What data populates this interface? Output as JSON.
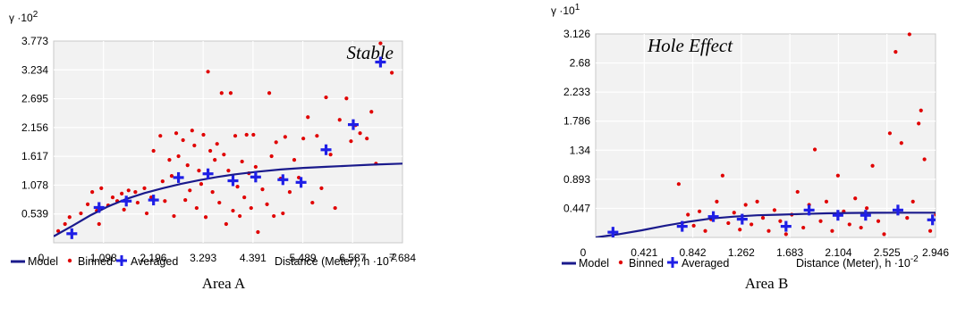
{
  "colors": {
    "model": "#1a1a8c",
    "binned": "#e00000",
    "averaged": "#1f1fe6",
    "plot_bg": "#f2f2f2",
    "grid": "#ffffff"
  },
  "chart_data": [
    {
      "type": "scatter",
      "title": "Stable",
      "caption": "Area A",
      "ylabel": "γ ·10",
      "ylabel_exp": "2",
      "xlabel": "Distance (Meter), h ·10",
      "xlabel_exp": "-2",
      "legend": {
        "model": "Model",
        "binned": "Binned",
        "averaged": "Averaged",
        "placement": "bottom"
      },
      "xlim": [
        0,
        7.684
      ],
      "ylim": [
        0,
        3.773
      ],
      "xticks": [
        "0",
        "1.098",
        "2.196",
        "3.293",
        "4.391",
        "5.489",
        "6.587",
        "7.684"
      ],
      "yticks": [
        "0.539",
        "1.078",
        "1.617",
        "2.156",
        "2.695",
        "3.234",
        "3.773"
      ],
      "grid": true,
      "model": [
        [
          0,
          0.12
        ],
        [
          0.4,
          0.31
        ],
        [
          0.8,
          0.51
        ],
        [
          1.2,
          0.68
        ],
        [
          1.6,
          0.82
        ],
        [
          2.0,
          0.93
        ],
        [
          2.4,
          1.02
        ],
        [
          2.8,
          1.1
        ],
        [
          3.2,
          1.17
        ],
        [
          3.6,
          1.23
        ],
        [
          4.0,
          1.28
        ],
        [
          4.5,
          1.33
        ],
        [
          5.0,
          1.37
        ],
        [
          5.5,
          1.4
        ],
        [
          6.0,
          1.42
        ],
        [
          6.5,
          1.44
        ],
        [
          7.0,
          1.46
        ],
        [
          7.684,
          1.48
        ]
      ],
      "averaged": [
        [
          0.4,
          0.17
        ],
        [
          1.0,
          0.66
        ],
        [
          1.6,
          0.78
        ],
        [
          2.2,
          0.8
        ],
        [
          2.75,
          1.22
        ],
        [
          3.4,
          1.29
        ],
        [
          3.95,
          1.16
        ],
        [
          4.45,
          1.23
        ],
        [
          5.05,
          1.18
        ],
        [
          5.45,
          1.13
        ],
        [
          6.0,
          1.74
        ],
        [
          6.6,
          2.21
        ],
        [
          7.2,
          3.38
        ]
      ],
      "binned": [
        [
          0.1,
          0.22
        ],
        [
          0.25,
          0.35
        ],
        [
          0.35,
          0.48
        ],
        [
          0.6,
          0.55
        ],
        [
          0.75,
          0.72
        ],
        [
          0.85,
          0.95
        ],
        [
          0.95,
          0.6
        ],
        [
          1.0,
          0.35
        ],
        [
          1.05,
          1.02
        ],
        [
          1.2,
          0.7
        ],
        [
          1.3,
          0.85
        ],
        [
          1.4,
          0.78
        ],
        [
          1.5,
          0.92
        ],
        [
          1.55,
          0.62
        ],
        [
          1.65,
          0.98
        ],
        [
          1.8,
          0.95
        ],
        [
          1.85,
          0.75
        ],
        [
          2.0,
          1.02
        ],
        [
          2.05,
          0.55
        ],
        [
          2.15,
          0.85
        ],
        [
          2.2,
          1.72
        ],
        [
          2.35,
          2.0
        ],
        [
          2.4,
          1.15
        ],
        [
          2.45,
          0.78
        ],
        [
          2.55,
          1.55
        ],
        [
          2.6,
          1.25
        ],
        [
          2.65,
          0.5
        ],
        [
          2.7,
          2.05
        ],
        [
          2.75,
          1.62
        ],
        [
          2.85,
          1.92
        ],
        [
          2.9,
          0.8
        ],
        [
          2.95,
          1.45
        ],
        [
          3.0,
          0.98
        ],
        [
          3.05,
          2.1
        ],
        [
          3.1,
          1.82
        ],
        [
          3.15,
          0.65
        ],
        [
          3.2,
          1.35
        ],
        [
          3.25,
          1.1
        ],
        [
          3.3,
          2.02
        ],
        [
          3.35,
          0.48
        ],
        [
          3.4,
          3.2
        ],
        [
          3.45,
          1.72
        ],
        [
          3.5,
          0.95
        ],
        [
          3.55,
          1.55
        ],
        [
          3.6,
          1.85
        ],
        [
          3.65,
          0.75
        ],
        [
          3.7,
          2.8
        ],
        [
          3.75,
          1.65
        ],
        [
          3.8,
          0.35
        ],
        [
          3.85,
          1.35
        ],
        [
          3.9,
          2.8
        ],
        [
          3.95,
          0.6
        ],
        [
          4.0,
          2.0
        ],
        [
          4.05,
          1.05
        ],
        [
          4.1,
          0.5
        ],
        [
          4.15,
          1.52
        ],
        [
          4.2,
          0.85
        ],
        [
          4.25,
          2.02
        ],
        [
          4.3,
          1.3
        ],
        [
          4.35,
          0.65
        ],
        [
          4.4,
          2.02
        ],
        [
          4.45,
          1.42
        ],
        [
          4.5,
          0.2
        ],
        [
          4.6,
          1.0
        ],
        [
          4.7,
          0.72
        ],
        [
          4.75,
          2.8
        ],
        [
          4.8,
          1.62
        ],
        [
          4.85,
          0.5
        ],
        [
          4.9,
          1.88
        ],
        [
          5.0,
          1.2
        ],
        [
          5.05,
          0.55
        ],
        [
          5.1,
          1.98
        ],
        [
          5.2,
          0.95
        ],
        [
          5.3,
          1.55
        ],
        [
          5.4,
          1.22
        ],
        [
          5.5,
          1.95
        ],
        [
          5.6,
          2.35
        ],
        [
          5.7,
          0.75
        ],
        [
          5.8,
          2.0
        ],
        [
          5.9,
          1.02
        ],
        [
          6.0,
          2.72
        ],
        [
          6.1,
          1.65
        ],
        [
          6.2,
          0.65
        ],
        [
          6.3,
          2.3
        ],
        [
          6.45,
          2.7
        ],
        [
          6.55,
          1.9
        ],
        [
          6.65,
          2.2
        ],
        [
          6.75,
          2.05
        ],
        [
          6.9,
          1.95
        ],
        [
          7.0,
          2.45
        ],
        [
          7.1,
          1.48
        ],
        [
          7.2,
          3.73
        ],
        [
          7.45,
          3.18
        ]
      ]
    },
    {
      "type": "scatter",
      "title": "Hole Effect",
      "caption": "Area B",
      "ylabel": "γ ·10",
      "ylabel_exp": "1",
      "xlabel": "Distance (Meter), h ·10",
      "xlabel_exp": "-2",
      "legend": {
        "model": "Model",
        "binned": "Binned",
        "averaged": "Averaged",
        "placement": "bottom"
      },
      "xlim": [
        0,
        2.946
      ],
      "ylim": [
        0,
        3.126
      ],
      "xticks": [
        "0",
        "0.421",
        "0.842",
        "1.262",
        "1.683",
        "2.104",
        "2.525",
        "2.946"
      ],
      "yticks": [
        "0.447",
        "0.893",
        "1.34",
        "1.786",
        "2.233",
        "2.68",
        "3.126"
      ],
      "grid": true,
      "model": [
        [
          0,
          0.0
        ],
        [
          0.2,
          0.05
        ],
        [
          0.4,
          0.11
        ],
        [
          0.6,
          0.18
        ],
        [
          0.8,
          0.24
        ],
        [
          1.0,
          0.29
        ],
        [
          1.2,
          0.32
        ],
        [
          1.4,
          0.34
        ],
        [
          1.6,
          0.35
        ],
        [
          1.8,
          0.36
        ],
        [
          2.0,
          0.37
        ],
        [
          2.2,
          0.375
        ],
        [
          2.4,
          0.378
        ],
        [
          2.6,
          0.38
        ],
        [
          2.8,
          0.38
        ],
        [
          2.946,
          0.38
        ]
      ],
      "averaged": [
        [
          0.15,
          0.08
        ],
        [
          0.75,
          0.17
        ],
        [
          1.02,
          0.32
        ],
        [
          1.27,
          0.28
        ],
        [
          1.65,
          0.17
        ],
        [
          1.85,
          0.42
        ],
        [
          2.1,
          0.34
        ],
        [
          2.34,
          0.34
        ],
        [
          2.62,
          0.42
        ],
        [
          2.92,
          0.27
        ]
      ],
      "binned": [
        [
          0.75,
          0.22
        ],
        [
          0.8,
          0.35
        ],
        [
          0.85,
          0.18
        ],
        [
          0.9,
          0.4
        ],
        [
          0.95,
          0.1
        ],
        [
          1.0,
          0.28
        ],
        [
          1.05,
          0.55
        ],
        [
          1.1,
          0.95
        ],
        [
          1.15,
          0.22
        ],
        [
          1.2,
          0.38
        ],
        [
          1.25,
          0.12
        ],
        [
          1.3,
          0.5
        ],
        [
          1.35,
          0.2
        ],
        [
          1.4,
          0.55
        ],
        [
          1.45,
          0.3
        ],
        [
          1.5,
          0.1
        ],
        [
          1.55,
          0.42
        ],
        [
          1.6,
          0.25
        ],
        [
          1.65,
          0.05
        ],
        [
          1.7,
          0.35
        ],
        [
          1.75,
          0.7
        ],
        [
          1.8,
          0.15
        ],
        [
          1.85,
          0.5
        ],
        [
          1.9,
          1.35
        ],
        [
          1.95,
          0.25
        ],
        [
          2.0,
          0.55
        ],
        [
          2.05,
          0.1
        ],
        [
          2.1,
          0.95
        ],
        [
          2.15,
          0.4
        ],
        [
          2.2,
          0.2
        ],
        [
          2.25,
          0.6
        ],
        [
          2.3,
          0.15
        ],
        [
          2.35,
          0.45
        ],
        [
          2.4,
          1.1
        ],
        [
          2.45,
          0.25
        ],
        [
          2.5,
          0.05
        ],
        [
          2.55,
          1.6
        ],
        [
          2.6,
          2.85
        ],
        [
          2.65,
          1.45
        ],
        [
          2.7,
          0.3
        ],
        [
          2.75,
          0.55
        ],
        [
          2.8,
          1.75
        ],
        [
          2.85,
          1.2
        ],
        [
          2.9,
          0.1
        ],
        [
          2.95,
          0.35
        ],
        [
          2.72,
          3.12
        ],
        [
          2.82,
          1.95
        ],
        [
          0.72,
          0.82
        ]
      ]
    }
  ]
}
